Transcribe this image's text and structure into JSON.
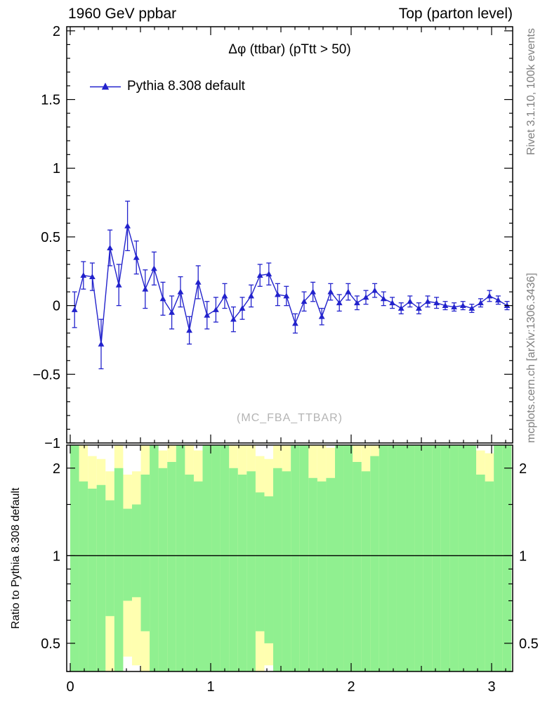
{
  "header": {
    "left": "1960 GeV ppbar",
    "right": "Top (parton level)"
  },
  "plot": {
    "title": "Δφ (ttbar) (pTtt > 50)",
    "watermark": "(MC_FBA_TTBAR)"
  },
  "legend": {
    "label": "Pythia 8.308 default",
    "marker": "triangle-up-icon"
  },
  "side": {
    "right_top": "Rivet 3.1.10, 100k events",
    "right_bottom": "mcplots.cern.ch [arXiv:1306.3436]",
    "ratio_ylabel": "Ratio to Pythia 8.308 default"
  },
  "colors": {
    "series_blue": "#2222cc",
    "band_green": "#90f090",
    "band_yellow": "#ffffb0",
    "gray_text": "#808080",
    "watermark_gray": "#b4b4b4"
  },
  "chart_data": {
    "type": "line",
    "title": "Δφ (ttbar) (pTtt > 50)",
    "xlabel": "Δφ (ttbar)",
    "xlim": [
      -0.025,
      3.15
    ],
    "xticks": [
      {
        "v": 0,
        "label": "0"
      },
      {
        "v": 1,
        "label": "1"
      },
      {
        "v": 2,
        "label": "2"
      },
      {
        "v": 3,
        "label": "3"
      }
    ],
    "main": {
      "ylim": [
        -1,
        2.03
      ],
      "yticks": [
        {
          "v": 2,
          "label": "2"
        },
        {
          "v": 1.5,
          "label": "1.5"
        },
        {
          "v": 1,
          "label": "1"
        },
        {
          "v": 0.5,
          "label": "0.5"
        },
        {
          "v": 0,
          "label": "0"
        },
        {
          "v": -0.5,
          "label": "−0.5"
        },
        {
          "v": -1,
          "label": "−1"
        }
      ]
    },
    "series": [
      {
        "name": "Pythia 8.308 default",
        "marker": "triangle-up",
        "x": [
          0.031,
          0.094,
          0.157,
          0.22,
          0.283,
          0.346,
          0.408,
          0.471,
          0.534,
          0.597,
          0.66,
          0.723,
          0.785,
          0.848,
          0.911,
          0.974,
          1.037,
          1.1,
          1.162,
          1.225,
          1.288,
          1.351,
          1.414,
          1.477,
          1.539,
          1.602,
          1.665,
          1.728,
          1.791,
          1.854,
          1.916,
          1.979,
          2.042,
          2.105,
          2.168,
          2.231,
          2.293,
          2.356,
          2.419,
          2.482,
          2.545,
          2.608,
          2.67,
          2.733,
          2.796,
          2.859,
          2.922,
          2.985,
          3.047,
          3.11
        ],
        "y": [
          -0.03,
          0.22,
          0.21,
          -0.28,
          0.42,
          0.15,
          0.58,
          0.35,
          0.12,
          0.27,
          0.05,
          -0.05,
          0.1,
          -0.18,
          0.17,
          -0.07,
          -0.03,
          0.07,
          -0.1,
          -0.02,
          0.07,
          0.22,
          0.23,
          0.08,
          0.07,
          -0.13,
          0.03,
          0.1,
          -0.08,
          0.1,
          0.02,
          0.1,
          0.02,
          0.06,
          0.11,
          0.05,
          0.02,
          -0.02,
          0.03,
          -0.02,
          0.03,
          0.02,
          0.0,
          -0.01,
          0.0,
          -0.02,
          0.02,
          0.07,
          0.04,
          0.0
        ],
        "yerr": [
          0.13,
          0.1,
          0.1,
          0.18,
          0.13,
          0.15,
          0.18,
          0.12,
          0.14,
          0.12,
          0.12,
          0.12,
          0.11,
          0.1,
          0.12,
          0.1,
          0.09,
          0.09,
          0.09,
          0.08,
          0.08,
          0.08,
          0.08,
          0.08,
          0.07,
          0.07,
          0.07,
          0.07,
          0.06,
          0.06,
          0.06,
          0.06,
          0.05,
          0.05,
          0.05,
          0.05,
          0.04,
          0.04,
          0.04,
          0.04,
          0.04,
          0.04,
          0.03,
          0.03,
          0.03,
          0.03,
          0.03,
          0.04,
          0.03,
          0.03
        ]
      }
    ],
    "ratio": {
      "ylabel": "Ratio to Pythia 8.308 default",
      "scale": "log",
      "ylim": [
        0.4,
        2.4
      ],
      "ref_line": 1,
      "yticks": [
        {
          "v": 2,
          "label": "2"
        },
        {
          "v": 1,
          "label": "1"
        },
        {
          "v": 0.5,
          "label": "0.5"
        }
      ],
      "nbins": 50,
      "bin_width": 0.0628319,
      "green_lo": [
        0.4,
        0.4,
        0.4,
        0.4,
        0.62,
        0.4,
        0.7,
        0.72,
        0.55,
        0.4,
        0.4,
        0.4,
        0.4,
        0.4,
        0.4,
        0.4,
        0.4,
        0.4,
        0.4,
        0.4,
        0.4,
        0.55,
        0.5,
        0.4,
        0.4,
        0.4,
        0.4,
        0.4,
        0.4,
        0.4,
        0.4,
        0.4,
        0.4,
        0.4,
        0.4,
        0.4,
        0.4,
        0.4,
        0.4,
        0.4,
        0.4,
        0.4,
        0.4,
        0.4,
        0.4,
        0.4,
        0.4,
        0.4,
        0.4,
        0.4
      ],
      "green_hi": [
        2.4,
        1.8,
        1.7,
        1.75,
        1.55,
        2.0,
        1.45,
        1.5,
        1.9,
        2.4,
        2.0,
        2.1,
        2.4,
        1.9,
        1.8,
        2.4,
        2.4,
        2.4,
        2.0,
        1.9,
        1.95,
        1.65,
        1.6,
        2.0,
        1.95,
        2.4,
        2.4,
        1.85,
        1.8,
        1.85,
        2.4,
        2.4,
        2.1,
        1.95,
        2.2,
        2.4,
        2.4,
        2.4,
        2.4,
        2.4,
        2.4,
        2.4,
        2.4,
        2.4,
        2.4,
        2.4,
        1.9,
        1.8,
        2.4,
        2.4
      ],
      "yellow_lo": [
        0.4,
        0.4,
        0.4,
        0.4,
        0.4,
        0.4,
        0.45,
        0.42,
        0.4,
        0.4,
        0.4,
        0.4,
        0.4,
        0.4,
        0.4,
        0.4,
        0.4,
        0.4,
        0.4,
        0.4,
        0.4,
        0.4,
        0.42,
        0.4,
        0.4,
        0.4,
        0.4,
        0.4,
        0.4,
        0.4,
        0.4,
        0.4,
        0.4,
        0.4,
        0.4,
        0.4,
        0.4,
        0.4,
        0.4,
        0.4,
        0.4,
        0.4,
        0.4,
        0.4,
        0.4,
        0.4,
        0.4,
        0.4,
        0.4,
        0.4
      ],
      "yellow_hi": [
        2.4,
        2.4,
        2.2,
        2.15,
        1.95,
        2.4,
        1.9,
        1.95,
        2.4,
        2.4,
        2.3,
        2.4,
        2.4,
        2.4,
        2.3,
        2.4,
        2.4,
        2.4,
        2.4,
        2.4,
        2.4,
        2.2,
        2.15,
        2.4,
        2.4,
        2.4,
        2.4,
        2.4,
        2.4,
        2.35,
        2.4,
        2.4,
        2.4,
        2.4,
        2.4,
        2.4,
        2.4,
        2.4,
        2.4,
        2.4,
        2.4,
        2.4,
        2.4,
        2.4,
        2.4,
        2.4,
        2.3,
        2.25,
        2.4,
        2.4
      ]
    }
  }
}
